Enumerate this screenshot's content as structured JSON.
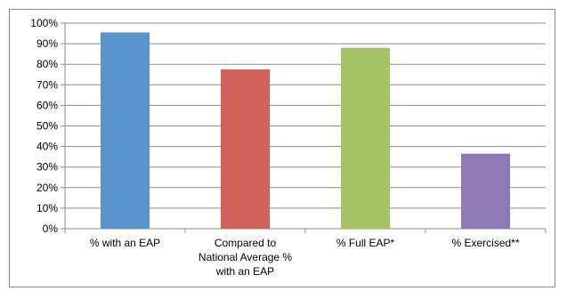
{
  "chart_data": {
    "type": "bar",
    "categories": [
      [
        "% with an EAP"
      ],
      [
        "Compared to",
        "National Average %",
        "with an EAP"
      ],
      [
        "% Full EAP*"
      ],
      [
        "% Exercised**"
      ]
    ],
    "values": [
      95.5,
      77.5,
      88,
      36.5
    ],
    "bar_colors": [
      "#5b95ce",
      "#d0625b",
      "#a5c264",
      "#8d79b5"
    ],
    "y_axis": {
      "min": 0,
      "max": 100,
      "step": 10,
      "tick_suffix": "%"
    },
    "grid": true,
    "title": "",
    "xlabel": "",
    "ylabel": "",
    "legend": "none"
  }
}
